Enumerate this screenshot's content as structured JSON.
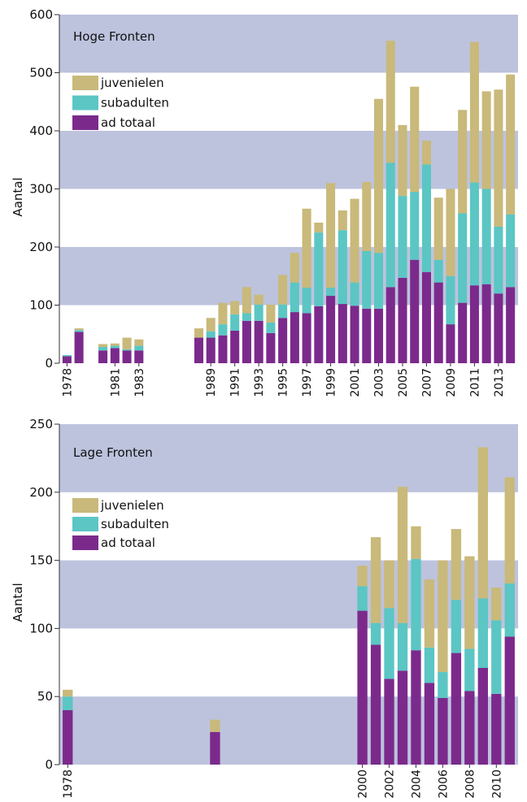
{
  "chart_data": [
    {
      "type": "stacked_bar",
      "title": "Hoge Fronten",
      "y_label": "Aantal",
      "categories": [
        "1978",
        null,
        null,
        null,
        "1981",
        null,
        "1983",
        null,
        null,
        null,
        null,
        null,
        "1989",
        null,
        "1991",
        null,
        "1993",
        null,
        "1995",
        null,
        "1997",
        null,
        "1999",
        null,
        "2001",
        null,
        "2003",
        null,
        "2005",
        null,
        "2007",
        null,
        "2009",
        null,
        "2011",
        null,
        "2013",
        null
      ],
      "series": [
        {
          "name": "ad totaal",
          "color": "#7b2a8c",
          "values": [
            12,
            54,
            null,
            22,
            26,
            22,
            22,
            0,
            0,
            0,
            0,
            44,
            44,
            48,
            56,
            73,
            73,
            52,
            78,
            88,
            86,
            98,
            116,
            102,
            99,
            94,
            94,
            131,
            147,
            178,
            157,
            139,
            67,
            104,
            134,
            136,
            120,
            131
          ]
        },
        {
          "name": "subadulten",
          "color": "#5bc6c4",
          "values": [
            2,
            3,
            null,
            6,
            4,
            2,
            8,
            0,
            0,
            0,
            0,
            0,
            11,
            19,
            28,
            13,
            28,
            18,
            23,
            51,
            44,
            127,
            14,
            127,
            40,
            99,
            96,
            214,
            141,
            117,
            185,
            39,
            83,
            154,
            177,
            164,
            115,
            125
          ]
        },
        {
          "name": "juvenielen",
          "color": "#c9b97a",
          "values": [
            0,
            3,
            null,
            5,
            4,
            20,
            11,
            0,
            0,
            0,
            0,
            16,
            23,
            37,
            23,
            45,
            17,
            31,
            51,
            51,
            136,
            17,
            180,
            34,
            144,
            119,
            265,
            210,
            122,
            181,
            41,
            107,
            150,
            178,
            242,
            168,
            236,
            241
          ]
        }
      ],
      "ylim": [
        0,
        600
      ],
      "yticks": [
        0,
        100,
        200,
        300,
        400,
        500,
        600
      ],
      "band_color": "#bdc3dd"
    },
    {
      "type": "stacked_bar",
      "title": "Lage Fronten",
      "y_label": "Aantal",
      "categories": [
        "1978",
        null,
        null,
        null,
        null,
        null,
        null,
        null,
        null,
        null,
        null,
        null,
        null,
        null,
        null,
        null,
        null,
        null,
        null,
        null,
        null,
        null,
        "2000",
        null,
        "2002",
        null,
        "2004",
        null,
        "2006",
        null,
        "2008",
        null,
        "2010",
        null
      ],
      "series": [
        {
          "name": "ad totaal",
          "color": "#7b2a8c",
          "values": [
            40,
            null,
            null,
            null,
            null,
            null,
            null,
            null,
            null,
            null,
            null,
            24,
            null,
            null,
            null,
            null,
            null,
            null,
            null,
            null,
            null,
            null,
            113,
            88,
            63,
            69,
            84,
            60,
            49,
            82,
            54,
            71,
            52,
            94
          ]
        },
        {
          "name": "subadulten",
          "color": "#5bc6c4",
          "values": [
            10,
            null,
            null,
            null,
            null,
            null,
            null,
            null,
            null,
            null,
            null,
            0,
            null,
            null,
            null,
            null,
            null,
            null,
            null,
            null,
            null,
            null,
            18,
            16,
            52,
            35,
            67,
            26,
            19,
            39,
            31,
            51,
            54,
            39
          ]
        },
        {
          "name": "juvenielen",
          "color": "#c9b97a",
          "values": [
            5,
            null,
            null,
            null,
            null,
            null,
            null,
            null,
            null,
            null,
            null,
            9,
            null,
            null,
            null,
            null,
            null,
            null,
            null,
            null,
            null,
            null,
            15,
            63,
            35,
            100,
            24,
            50,
            82,
            52,
            68,
            111,
            24,
            78
          ]
        }
      ],
      "ylim": [
        0,
        250
      ],
      "yticks": [
        0,
        50,
        100,
        150,
        200,
        250
      ],
      "band_color": "#bdc3dd"
    }
  ]
}
